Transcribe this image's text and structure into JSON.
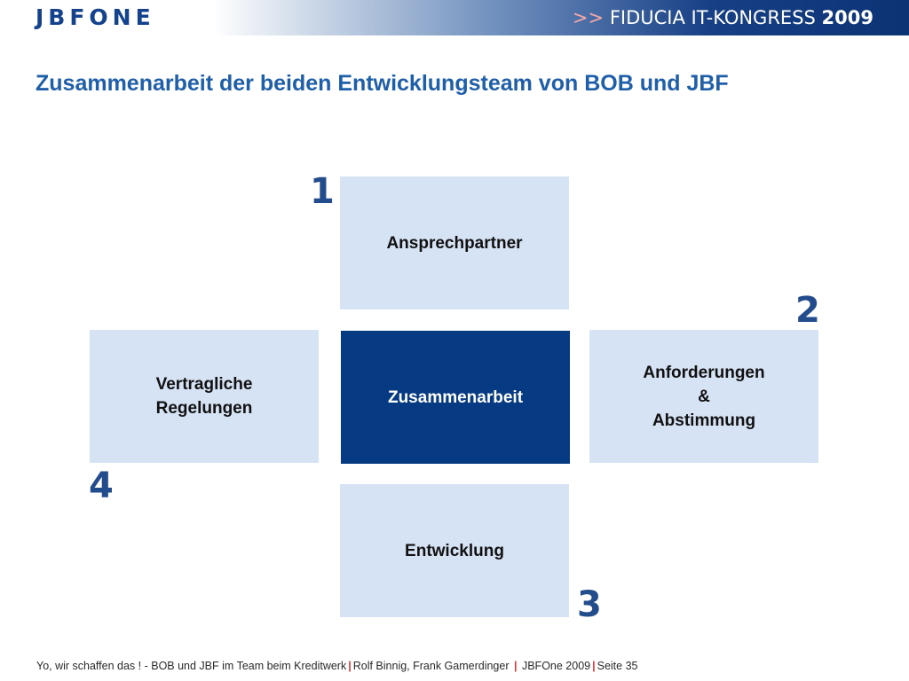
{
  "header": {
    "logo_text": "JBFONE",
    "congress_arrows": ">>",
    "congress_name": "FIDUCIA IT-KONGRESS",
    "congress_year": "2009"
  },
  "title": "Zusammenarbeit der beiden Entwicklungsteam von BOB und JBF",
  "diagram": {
    "center": "Zusammenarbeit",
    "top": "Ansprechpartner",
    "right": "Anforderungen\n&\nAbstimmung",
    "bottom": "Entwicklung",
    "left": "Vertragliche\nRegelungen",
    "num_top": "1",
    "num_right": "2",
    "num_bottom": "3",
    "num_left": "4"
  },
  "footer": {
    "part1": "Yo, wir schaffen das ! - BOB und JBF im Team beim Kreditwerk",
    "sep": "|",
    "part2": "Rolf Binnig, Frank Gamerdinger",
    "part3": "JBFOne 2009",
    "part4": "Seite 35"
  },
  "colors": {
    "accent": "#063a83",
    "light_box": "#d6e3f5",
    "title": "#1f5ea8"
  }
}
